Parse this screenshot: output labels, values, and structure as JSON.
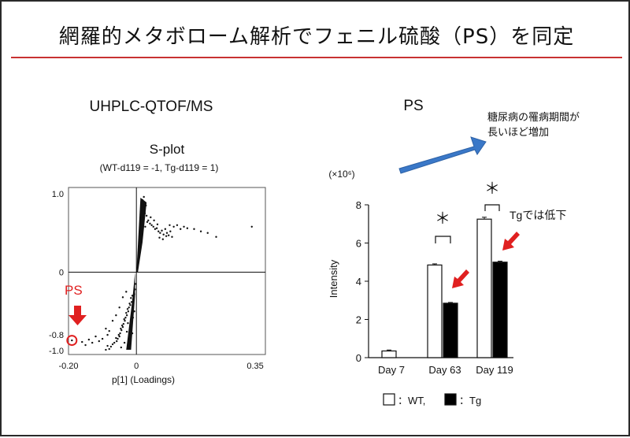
{
  "slide": {
    "title": "網羅的メタボローム解析でフェニル硫酸（PS）を同定",
    "colors": {
      "rule": "#c83232",
      "annotation_red": "#e02020",
      "arrow_blue": "#3a78c8"
    }
  },
  "chart_data": [
    {
      "type": "scatter",
      "section_title": "UHPLC-QTOF/MS",
      "title": "S-plot",
      "subtitle": "(WT-d119 = -1, Tg-d119 = 1)",
      "xlabel": "p[1] (Loadings)",
      "xlim": [
        -0.2,
        0.38
      ],
      "ylim": [
        -1.05,
        1.08
      ],
      "xticks": [
        {
          "label": "-0.20",
          "value": -0.2
        },
        {
          "label": "0",
          "value": 0
        },
        {
          "label": "0.35",
          "value": 0.35
        }
      ],
      "yticks": [
        {
          "label": "1.0",
          "value": 1.0
        },
        {
          "label": "0",
          "value": 0
        },
        {
          "label": "-0.8",
          "value": -0.8
        },
        {
          "label": "-1.0",
          "value": -1.0
        }
      ],
      "annotation": {
        "label": "PS",
        "x": -0.19,
        "y": -0.87,
        "marker": "circle-and-arrow"
      },
      "points": [
        [
          0.02,
          0.7
        ],
        [
          0.025,
          0.75
        ],
        [
          0.03,
          0.72
        ],
        [
          0.035,
          0.66
        ],
        [
          0.04,
          0.62
        ],
        [
          0.045,
          0.6
        ],
        [
          0.05,
          0.58
        ],
        [
          0.055,
          0.55
        ],
        [
          0.06,
          0.56
        ],
        [
          0.065,
          0.52
        ],
        [
          0.07,
          0.5
        ],
        [
          0.075,
          0.53
        ],
        [
          0.08,
          0.48
        ],
        [
          0.085,
          0.55
        ],
        [
          0.09,
          0.5
        ],
        [
          0.095,
          0.47
        ],
        [
          0.1,
          0.52
        ],
        [
          0.11,
          0.58
        ],
        [
          0.12,
          0.6
        ],
        [
          0.13,
          0.55
        ],
        [
          0.14,
          0.58
        ],
        [
          0.15,
          0.56
        ],
        [
          0.17,
          0.55
        ],
        [
          0.19,
          0.52
        ],
        [
          0.21,
          0.5
        ],
        [
          0.235,
          0.45
        ],
        [
          0.34,
          0.58
        ],
        [
          0.028,
          0.85
        ],
        [
          0.032,
          0.64
        ],
        [
          0.042,
          0.7
        ],
        [
          0.052,
          0.66
        ],
        [
          0.062,
          0.61
        ],
        [
          0.068,
          0.44
        ],
        [
          0.078,
          0.42
        ],
        [
          0.088,
          0.46
        ],
        [
          0.098,
          0.6
        ],
        [
          0.105,
          0.45
        ],
        [
          0.018,
          0.92
        ],
        [
          0.022,
          0.96
        ],
        [
          0.026,
          0.58
        ],
        [
          -0.002,
          -0.15
        ],
        [
          -0.004,
          -0.22
        ],
        [
          -0.006,
          -0.28
        ],
        [
          -0.008,
          -0.31
        ],
        [
          -0.01,
          -0.35
        ],
        [
          -0.012,
          -0.3
        ],
        [
          -0.014,
          -0.38
        ],
        [
          -0.016,
          -0.33
        ],
        [
          -0.018,
          -0.42
        ],
        [
          -0.02,
          -0.4
        ],
        [
          -0.022,
          -0.45
        ],
        [
          -0.024,
          -0.5
        ],
        [
          -0.026,
          -0.47
        ],
        [
          -0.028,
          -0.55
        ],
        [
          -0.03,
          -0.52
        ],
        [
          -0.032,
          -0.58
        ],
        [
          -0.034,
          -0.62
        ],
        [
          -0.036,
          -0.6
        ],
        [
          -0.038,
          -0.66
        ],
        [
          -0.04,
          -0.7
        ],
        [
          -0.042,
          -0.68
        ],
        [
          -0.044,
          -0.74
        ],
        [
          -0.046,
          -0.72
        ],
        [
          -0.048,
          -0.78
        ],
        [
          -0.05,
          -0.82
        ],
        [
          -0.052,
          -0.8
        ],
        [
          -0.055,
          -0.85
        ],
        [
          -0.058,
          -0.88
        ],
        [
          -0.06,
          -0.84
        ],
        [
          -0.065,
          -0.9
        ],
        [
          -0.07,
          -0.92
        ],
        [
          -0.075,
          -0.95
        ],
        [
          -0.08,
          -0.98
        ],
        [
          -0.085,
          -0.94
        ],
        [
          -0.09,
          -0.99
        ],
        [
          -0.03,
          -0.25
        ],
        [
          -0.04,
          -0.32
        ],
        [
          -0.05,
          -0.45
        ],
        [
          -0.06,
          -0.55
        ],
        [
          -0.07,
          -0.62
        ],
        [
          -0.08,
          -0.75
        ],
        [
          -0.085,
          -0.8
        ],
        [
          -0.09,
          -0.72
        ],
        [
          -0.1,
          -0.85
        ],
        [
          -0.11,
          -0.88
        ],
        [
          -0.12,
          -0.82
        ],
        [
          -0.13,
          -0.9
        ],
        [
          -0.14,
          -0.86
        ],
        [
          -0.15,
          -0.93
        ],
        [
          -0.16,
          -0.89
        ],
        [
          -0.025,
          -0.65
        ],
        [
          -0.015,
          -0.7
        ],
        [
          -0.012,
          -0.78
        ],
        [
          -0.02,
          -0.85
        ],
        [
          -0.035,
          -0.9
        ],
        [
          -0.045,
          -0.96
        ],
        [
          -0.01,
          -0.58
        ],
        [
          -0.006,
          -0.5
        ],
        [
          -0.016,
          -0.63
        ],
        [
          -0.028,
          -0.76
        ],
        [
          -0.19,
          -0.87
        ]
      ],
      "dense_bands": [
        {
          "series": "positive",
          "x_start": 0.0,
          "x_end": 0.03,
          "y_start": 0.0,
          "y_end": 0.95
        },
        {
          "series": "negative",
          "x_start": -0.004,
          "x_end": -0.03,
          "y_start": 0.0,
          "y_end": -0.99
        }
      ]
    },
    {
      "type": "bar",
      "title": "PS",
      "ylabel": "Intensity",
      "scale_label": "(×10⁶)",
      "ylim": [
        0,
        8
      ],
      "yticks": [
        0,
        2,
        4,
        6,
        8
      ],
      "categories": [
        "Day 7",
        "Day 63",
        "Day 119"
      ],
      "series": [
        {
          "key": "WT",
          "values": [
            0.35,
            4.85,
            7.25
          ],
          "errors": [
            0.05,
            0.06,
            0.1
          ],
          "fill": "#ffffff"
        },
        {
          "key": "Tg",
          "values": [
            null,
            2.85,
            5.0
          ],
          "errors": [
            null,
            0.04,
            0.05
          ],
          "fill": "#000000"
        }
      ],
      "significance": [
        {
          "category": "Day 63",
          "label": "＊"
        },
        {
          "category": "Day 119",
          "label": "＊"
        }
      ],
      "legend": {
        "placement": "bottom",
        "items": [
          {
            "swatch": "#ffffff",
            "label": "：WT,"
          },
          {
            "swatch": "#000000",
            "label": "：Tg"
          }
        ]
      },
      "annotations": [
        {
          "text_lines": [
            "糖尿病の罹病期間が",
            "長いほど増加"
          ],
          "arrow": "blue-diagonal"
        },
        {
          "text": "Tgでは低下",
          "arrow": "red"
        }
      ]
    }
  ]
}
